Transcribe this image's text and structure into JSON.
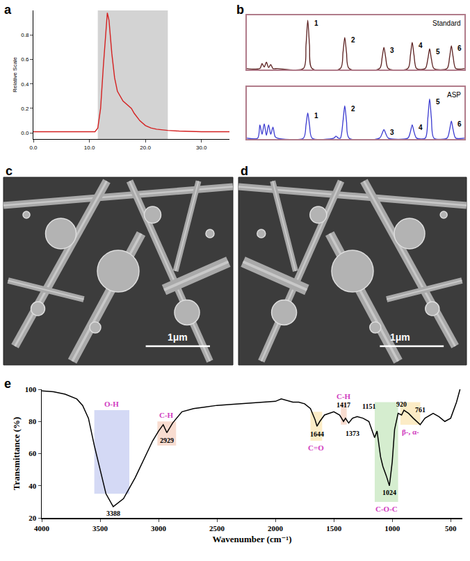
{
  "chart_data": [
    {
      "panel": "a",
      "type": "line",
      "color": "#d42020",
      "ylabel": "Relative Scale",
      "x": [
        0,
        5,
        10,
        11,
        11.5,
        12,
        12.5,
        13,
        13.2,
        13.5,
        14,
        14.5,
        15,
        16,
        17,
        17.5,
        18,
        19,
        20,
        21,
        22,
        24,
        26,
        30,
        35
      ],
      "values": [
        0.01,
        0.01,
        0.008,
        0.01,
        0.04,
        0.2,
        0.55,
        0.9,
        0.98,
        0.92,
        0.65,
        0.45,
        0.34,
        0.26,
        0.22,
        0.2,
        0.16,
        0.1,
        0.06,
        0.04,
        0.03,
        0.02,
        0.015,
        0.01,
        0.01
      ],
      "shaded": [
        11.5,
        24
      ],
      "xlim": [
        0,
        35
      ],
      "ylim": [
        -0.05,
        1.0
      ],
      "xticks": [
        {
          "value": 0,
          "label": "0.0"
        },
        {
          "value": 10,
          "label": "10.0"
        },
        {
          "value": 20,
          "label": "20.0"
        },
        {
          "value": 30,
          "label": "30.0"
        }
      ],
      "yticks": [
        {
          "value": 0,
          "label": "0.0"
        },
        {
          "value": 0.2,
          "label": "0.2"
        },
        {
          "value": 0.4,
          "label": "0.4"
        },
        {
          "value": 0.6,
          "label": "0.6"
        },
        {
          "value": 0.8,
          "label": "0.8"
        }
      ]
    },
    {
      "panel": "b",
      "type": "line",
      "tick_labels": false,
      "xlim": [
        0,
        50
      ],
      "ylim": [
        0,
        1.1
      ],
      "series": [
        {
          "name": "Standard",
          "color": "#5a1f1f",
          "x": [
            0,
            3,
            3.5,
            4,
            4.5,
            5,
            5.5,
            6,
            7,
            13,
            13.6,
            14,
            14.4,
            15,
            21.5,
            22.1,
            22.5,
            22.9,
            23.5,
            30.5,
            31.1,
            31.5,
            31.9,
            32.5,
            37,
            37.6,
            38,
            38.4,
            39,
            41,
            41.6,
            42,
            42.4,
            43,
            46,
            46.6,
            47,
            47.4,
            48,
            50
          ],
          "values": [
            0.02,
            0.02,
            0.12,
            0.05,
            0.15,
            0.04,
            0.1,
            0.02,
            0.02,
            0.02,
            0.5,
            1.0,
            0.5,
            0.02,
            0.02,
            0.35,
            0.65,
            0.35,
            0.02,
            0.02,
            0.25,
            0.45,
            0.25,
            0.02,
            0.02,
            0.3,
            0.55,
            0.3,
            0.02,
            0.02,
            0.22,
            0.42,
            0.22,
            0.02,
            0.02,
            0.26,
            0.48,
            0.26,
            0.02,
            0.02
          ],
          "peak_labels": [
            {
              "x": 14,
              "y": 1.0,
              "text": "1"
            },
            {
              "x": 22.5,
              "y": 0.65,
              "text": "2"
            },
            {
              "x": 31.5,
              "y": 0.45,
              "text": "3"
            },
            {
              "x": 38,
              "y": 0.55,
              "text": "4"
            },
            {
              "x": 42,
              "y": 0.42,
              "text": "5"
            },
            {
              "x": 47,
              "y": 0.48,
              "text": "6"
            }
          ]
        },
        {
          "name": "ASP",
          "color": "#3a3ad0",
          "x": [
            0,
            2.5,
            3,
            3.5,
            4,
            4.5,
            5,
            5.5,
            6,
            6.5,
            7,
            13,
            13.6,
            14,
            14.4,
            15,
            20,
            20.5,
            21,
            21.5,
            22.1,
            22.5,
            22.9,
            23.5,
            30.5,
            31.1,
            31.5,
            31.9,
            32.5,
            37,
            37.6,
            38,
            38.4,
            39,
            41,
            41.6,
            42,
            42.4,
            43,
            46,
            46.6,
            47,
            47.4,
            48,
            50
          ],
          "values": [
            0.02,
            0.02,
            0.3,
            0.1,
            0.32,
            0.08,
            0.3,
            0.1,
            0.25,
            0.05,
            0.02,
            0.02,
            0.3,
            0.55,
            0.3,
            0.02,
            0.02,
            0.06,
            0.02,
            0.02,
            0.38,
            0.7,
            0.38,
            0.02,
            0.02,
            0.12,
            0.2,
            0.12,
            0.02,
            0.02,
            0.16,
            0.3,
            0.16,
            0.02,
            0.02,
            0.45,
            0.85,
            0.45,
            0.02,
            0.02,
            0.2,
            0.38,
            0.2,
            0.02,
            0.02
          ],
          "peak_labels": [
            {
              "x": 14,
              "y": 0.55,
              "text": "1"
            },
            {
              "x": 22.5,
              "y": 0.7,
              "text": "2"
            },
            {
              "x": 31.5,
              "y": 0.2,
              "text": "3"
            },
            {
              "x": 38,
              "y": 0.3,
              "text": "4"
            },
            {
              "x": 42,
              "y": 0.85,
              "text": "5"
            },
            {
              "x": 47,
              "y": 0.38,
              "text": "6"
            }
          ]
        }
      ]
    },
    {
      "panel": "c",
      "type": "image",
      "scale_bar": "1μm"
    },
    {
      "panel": "d",
      "type": "image",
      "scale_bar": "1μm"
    },
    {
      "panel": "e",
      "type": "line",
      "color": "#000000",
      "xlabel": "Wavenumber (cm⁻¹)",
      "ylabel": "Transmittance (%)",
      "x": [
        4000,
        3900,
        3800,
        3700,
        3650,
        3600,
        3550,
        3500,
        3450,
        3388,
        3300,
        3200,
        3100,
        3050,
        3000,
        2960,
        2929,
        2880,
        2800,
        2700,
        2600,
        2500,
        2400,
        2300,
        2200,
        2100,
        2000,
        1950,
        1900,
        1850,
        1800,
        1750,
        1700,
        1660,
        1644,
        1620,
        1580,
        1500,
        1450,
        1417,
        1400,
        1373,
        1340,
        1300,
        1250,
        1200,
        1151,
        1130,
        1100,
        1080,
        1050,
        1024,
        1000,
        980,
        950,
        920,
        900,
        860,
        820,
        790,
        761,
        720,
        650,
        600,
        550,
        500,
        450,
        420
      ],
      "values": [
        99,
        98.5,
        97,
        94,
        90,
        82,
        65,
        50,
        35,
        27,
        32,
        45,
        60,
        68,
        74,
        78,
        73,
        79,
        86,
        88,
        89,
        90,
        90.5,
        91,
        91.5,
        92,
        92.5,
        94,
        93,
        92,
        92,
        91,
        88,
        81,
        77,
        80,
        84,
        86,
        84,
        80,
        82,
        79,
        82,
        83,
        82,
        80,
        70,
        74,
        58,
        52,
        46,
        40,
        55,
        75,
        85,
        84,
        87,
        85,
        82,
        80,
        78,
        82,
        85,
        83,
        80,
        82,
        92,
        100
      ],
      "peaks": [
        3388,
        2929,
        1644,
        1417,
        1373,
        1151,
        1024,
        920,
        761
      ],
      "bands": [
        {
          "label": "O-H",
          "color": "#c9d0f2",
          "x0": 3550,
          "x1": 3250,
          "y0": 35,
          "y1": 87
        },
        {
          "label": "C-H",
          "color": "#f6d3c4",
          "x0": 3010,
          "x1": 2850,
          "y0": 65,
          "y1": 80
        },
        {
          "label": "C=O",
          "color": "#fbe7b8",
          "x0": 1700,
          "x1": 1600,
          "y0": 68,
          "y1": 86
        },
        {
          "label": "C-H",
          "color": "#f6d3c4",
          "x0": 1440,
          "x1": 1390,
          "y0": 78,
          "y1": 92
        },
        {
          "label": "C-O-C",
          "color": "#cbe8c3",
          "x0": 1150,
          "x1": 950,
          "y0": 30,
          "y1": 92
        },
        {
          "label": "β-, α-",
          "color": "#fbe7b8",
          "x0": 930,
          "x1": 760,
          "y0": 78,
          "y1": 92
        }
      ],
      "xlim": [
        4000,
        400
      ],
      "ylim": [
        20,
        100
      ],
      "xticks": [
        4000,
        3500,
        3000,
        2500,
        2000,
        1500,
        1000,
        500
      ],
      "yticks": [
        20,
        40,
        60,
        80,
        100
      ]
    }
  ]
}
